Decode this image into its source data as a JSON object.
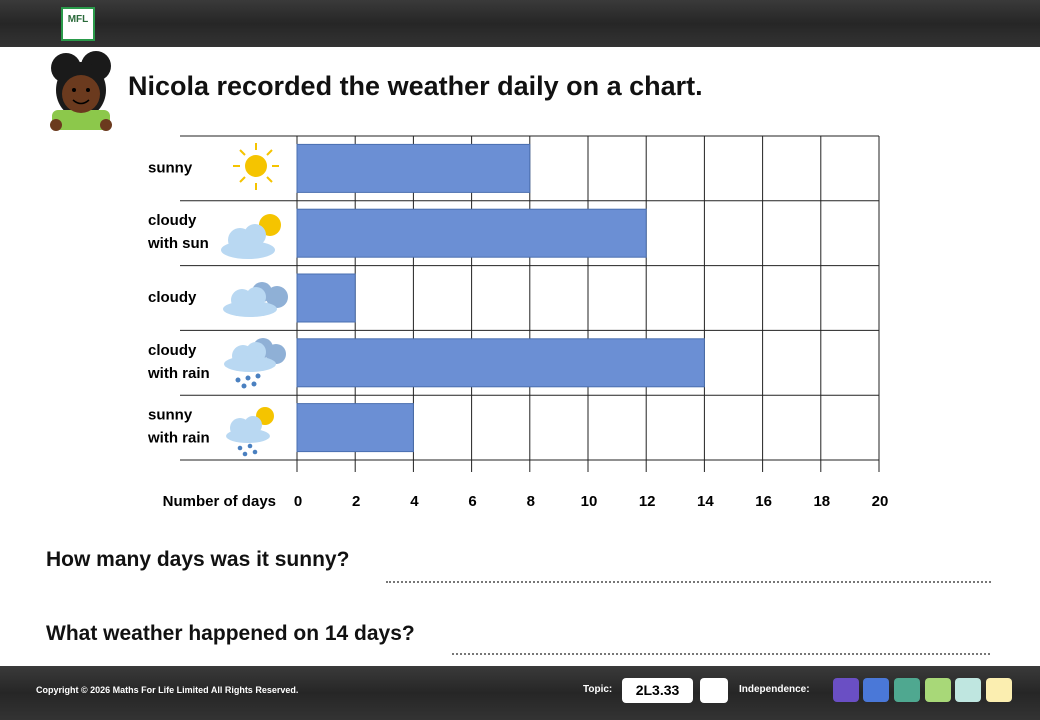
{
  "header": {
    "logo": "MFL"
  },
  "title": "Nicola recorded the weather daily on a chart.",
  "chart_data": {
    "type": "barh",
    "categories": [
      "sunny",
      "cloudy with sun",
      "cloudy",
      "cloudy with rain",
      "sunny with rain"
    ],
    "values": [
      8,
      12,
      2,
      14,
      4
    ],
    "color": "#6b8fd4",
    "x_label": "Number of days",
    "xlim": [
      0,
      20
    ],
    "xticks": [
      0,
      2,
      4,
      6,
      8,
      10,
      12,
      14,
      16,
      18,
      20
    ],
    "grid": true
  },
  "questions": [
    "How many days was it sunny?",
    "What weather happened on 14 days?"
  ],
  "footer": {
    "copyright": "Copyright © 2026 Maths For Life Limited All Rights Reserved.",
    "topic_label": "Topic:",
    "topic": "2L3.33",
    "independence_label": "Independence:"
  }
}
